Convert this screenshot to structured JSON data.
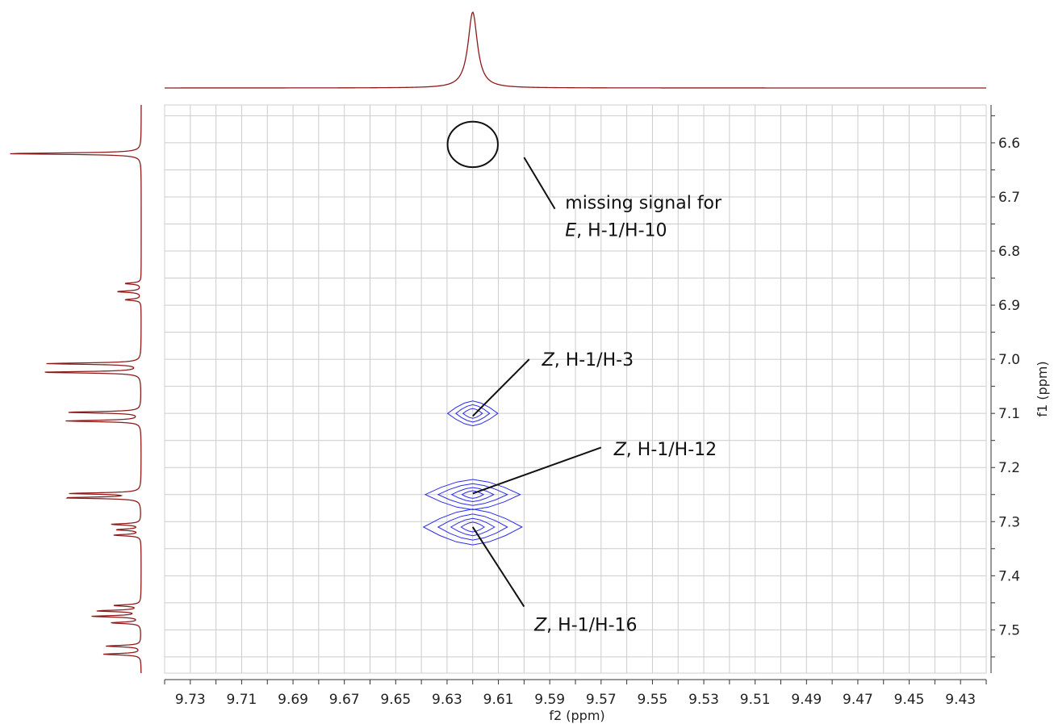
{
  "chart_data": {
    "type": "contour",
    "xlabel": "f2 (ppm)",
    "ylabel": "f1 (ppm)",
    "x_reversed": true,
    "xlim": [
      9.74,
      9.42
    ],
    "ylim": [
      6.53,
      7.58
    ],
    "x_ticks": [
      9.73,
      9.71,
      9.69,
      9.67,
      9.65,
      9.63,
      9.61,
      9.59,
      9.57,
      9.55,
      9.53,
      9.51,
      9.49,
      9.47,
      9.45,
      9.43
    ],
    "y_ticks": [
      6.6,
      6.7,
      6.8,
      6.9,
      7.0,
      7.1,
      7.2,
      7.3,
      7.4,
      7.5
    ],
    "grid": true,
    "colors": {
      "contour": "#2a2aee",
      "projection": "#8b1a1a",
      "grid": "#cccccc",
      "axis": "#333333"
    },
    "cross_peaks": [
      {
        "x": 9.62,
        "y": 7.1,
        "levels": [
          [
            0.0098,
            0.023
          ],
          [
            0.0066,
            0.016
          ],
          [
            0.0038,
            0.009
          ]
        ]
      },
      {
        "x": 9.62,
        "y": 7.25,
        "levels": [
          [
            0.0185,
            0.028
          ],
          [
            0.0135,
            0.02
          ],
          [
            0.0082,
            0.013
          ],
          [
            0.0042,
            0.007
          ]
        ]
      },
      {
        "x": 9.62,
        "y": 7.31,
        "levels": [
          [
            0.0192,
            0.033
          ],
          [
            0.0135,
            0.024
          ],
          [
            0.0085,
            0.016
          ],
          [
            0.0045,
            0.009
          ]
        ]
      }
    ],
    "top_projection": {
      "peaks": [
        {
          "x": 9.62,
          "width": 0.0022,
          "height": 1.0
        }
      ]
    },
    "left_projection": {
      "peaks": [
        {
          "y": 6.62,
          "width": 0.0016,
          "height": 1.0
        },
        {
          "y": 6.86,
          "width": 0.0016,
          "height": 0.12
        },
        {
          "y": 6.875,
          "width": 0.0016,
          "height": 0.18
        },
        {
          "y": 6.89,
          "width": 0.0016,
          "height": 0.12
        },
        {
          "y": 7.008,
          "width": 0.0016,
          "height": 0.7
        },
        {
          "y": 7.024,
          "width": 0.0016,
          "height": 0.74
        },
        {
          "y": 7.098,
          "width": 0.0016,
          "height": 0.55
        },
        {
          "y": 7.114,
          "width": 0.0016,
          "height": 0.56
        },
        {
          "y": 7.248,
          "width": 0.0016,
          "height": 0.52
        },
        {
          "y": 7.256,
          "width": 0.0016,
          "height": 0.56
        },
        {
          "y": 7.305,
          "width": 0.0016,
          "height": 0.22
        },
        {
          "y": 7.315,
          "width": 0.0016,
          "height": 0.18
        },
        {
          "y": 7.325,
          "width": 0.0016,
          "height": 0.2
        },
        {
          "y": 7.455,
          "width": 0.0016,
          "height": 0.2
        },
        {
          "y": 7.465,
          "width": 0.0016,
          "height": 0.32
        },
        {
          "y": 7.475,
          "width": 0.0016,
          "height": 0.36
        },
        {
          "y": 7.487,
          "width": 0.0016,
          "height": 0.22
        },
        {
          "y": 7.53,
          "width": 0.0016,
          "height": 0.26
        },
        {
          "y": 7.545,
          "width": 0.0016,
          "height": 0.28
        }
      ]
    },
    "annotations": [
      {
        "lines": [
          {
            "italic": "",
            "text": "missing signal for"
          },
          {
            "italic": "E",
            "text": ", H-1/H-10"
          }
        ],
        "text_x": 9.584,
        "text_y": 6.71,
        "point_x": 9.6,
        "point_y": 6.627,
        "anchor_x": 9.588,
        "anchor_y": 6.722
      },
      {
        "lines": [
          {
            "italic": "Z",
            "text": ", H-1/H-3"
          }
        ],
        "text_x": 9.593,
        "text_y": 7.0,
        "point_x": 9.62,
        "point_y": 7.105,
        "anchor_x": 9.598,
        "anchor_y": 7.0
      },
      {
        "lines": [
          {
            "italic": "Z",
            "text": ", H-1/H-12"
          }
        ],
        "text_x": 9.565,
        "text_y": 7.165,
        "point_x": 9.62,
        "point_y": 7.248,
        "anchor_x": 9.57,
        "anchor_y": 7.163
      },
      {
        "lines": [
          {
            "italic": "Z",
            "text": ", H-1/H-16"
          }
        ],
        "text_x": 9.596,
        "text_y": 7.49,
        "point_x": 9.62,
        "point_y": 7.31,
        "anchor_x": 9.6,
        "anchor_y": 7.457
      }
    ],
    "missing_signal_marker": {
      "x": 9.62,
      "y": 6.603,
      "rx": 0.0098,
      "ry": 0.042
    }
  }
}
